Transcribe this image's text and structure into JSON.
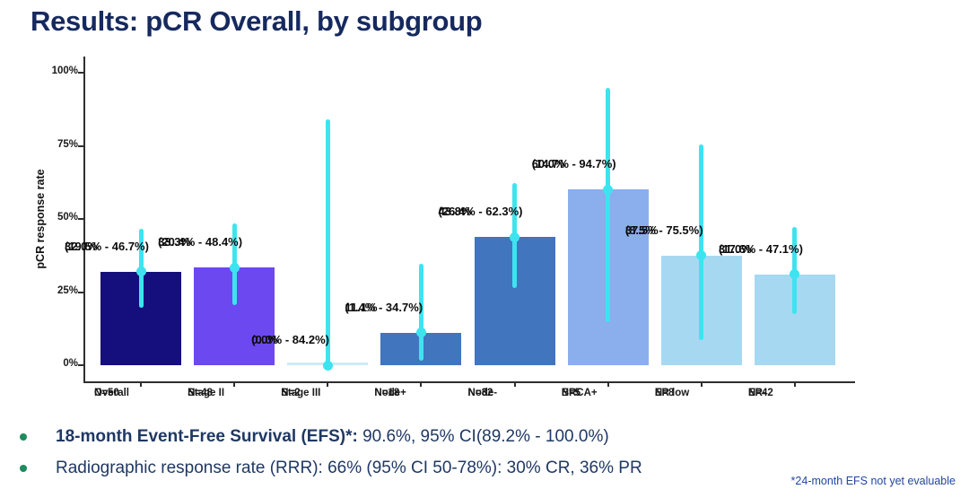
{
  "title": "Results: pCR Overall, by subgroup",
  "chart_data": {
    "type": "bar",
    "title": "Results: pCR Overall, by subgroup",
    "xlabel": "",
    "ylabel": "pCR response rate",
    "ylim": [
      0,
      100
    ],
    "grid": false,
    "legend": "none",
    "error_bar_color": "#3DE4F0",
    "yticks": [
      {
        "value": 0,
        "label": "0%"
      },
      {
        "value": 25,
        "label": "25%"
      },
      {
        "value": 50,
        "label": "50%"
      },
      {
        "value": 75,
        "label": "75%"
      },
      {
        "value": 100,
        "label": "100%"
      }
    ],
    "categories": [
      {
        "label": "Overall",
        "n_label": "N=50",
        "value": 32.0,
        "value_label": "32.0%",
        "ci_label": "(19.5% - 46.7%)",
        "ci_low": 19.5,
        "ci_high": 46.7,
        "color": "#150F7D"
      },
      {
        "label": "Stage II",
        "n_label": "N=48",
        "value": 33.3,
        "value_label": "33.3%",
        "ci_label": "(20.4% - 48.4%)",
        "ci_low": 20.4,
        "ci_high": 48.4,
        "color": "#6C48F0"
      },
      {
        "label": "Stage III",
        "n_label": "N=2",
        "value": 0.0,
        "value_label": "0.0%",
        "ci_label": "(0.0% - 84.2%)",
        "ci_low": 0.0,
        "ci_high": 84.2,
        "color": "#CDEAF7"
      },
      {
        "label": "Node+",
        "n_label": "N=18",
        "value": 11.1,
        "value_label": "11.1%",
        "ci_label": "(1.4% - 34.7%)",
        "ci_low": 1.4,
        "ci_high": 34.7,
        "color": "#4175BE"
      },
      {
        "label": "Node-",
        "n_label": "N=32",
        "value": 43.8,
        "value_label": "43.8%",
        "ci_label": "(26.4% - 62.3%)",
        "ci_low": 26.4,
        "ci_high": 62.3,
        "color": "#4175BE"
      },
      {
        "label": "BRCA+",
        "n_label": "N=5",
        "value": 60.0,
        "value_label": "60.0%",
        "ci_label": "(14.7% - 94.7%)",
        "ci_low": 14.7,
        "ci_high": 94.7,
        "color": "#8BAEEC"
      },
      {
        "label": "ER low",
        "n_label": "N=8",
        "value": 37.5,
        "value_label": "37.5%",
        "ci_label": "(8.5% - 75.5%)",
        "ci_low": 8.5,
        "ci_high": 75.5,
        "color": "#A6D9F1"
      },
      {
        "label": "ER-",
        "n_label": "N=42",
        "value": 31.0,
        "value_label": "31.0%",
        "ci_label": "(17.6% - 47.1%)",
        "ci_low": 17.6,
        "ci_high": 47.1,
        "color": "#A6D9F1"
      }
    ]
  },
  "bullets": [
    {
      "bold": "18-month Event-Free Survival (EFS)*:",
      "rest": " 90.6%, 95% CI(89.2% - 100.0%)"
    },
    {
      "bold": "",
      "rest": "Radiographic response rate (RRR): 66% (95% CI 50-78%): 30% CR, 36% PR"
    }
  ],
  "footnote": "*24-month EFS not yet evaluable",
  "colors": {
    "title_text": "#16295F",
    "bullet_text": "#1F3864",
    "bullet_dot": "#1E8A5E",
    "footnote_text": "#2147A0",
    "axis": "#2E2E2E",
    "bar_label_text": "#0C0C0C",
    "error_bar": "#3DE4F0"
  }
}
